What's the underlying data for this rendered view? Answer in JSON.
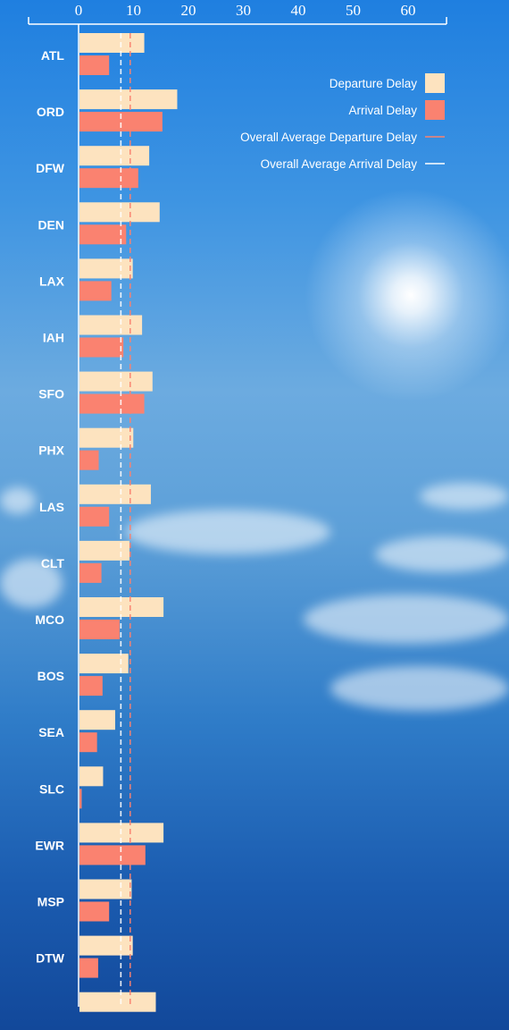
{
  "chart_data": {
    "type": "bar",
    "orientation": "horizontal",
    "categories": [
      "ATL",
      "ORD",
      "DFW",
      "DEN",
      "LAX",
      "IAH",
      "SFO",
      "PHX",
      "LAS",
      "CLT",
      "MCO",
      "BOS",
      "SEA",
      "SLC",
      "EWR",
      "MSP",
      "DTW",
      ""
    ],
    "series": [
      {
        "name": "Departure Delay",
        "color": "#fde3bf",
        "values": [
          11.8,
          17.8,
          12.7,
          14.6,
          9.7,
          11.4,
          13.3,
          9.8,
          13.0,
          9.1,
          15.3,
          8.9,
          6.5,
          4.3,
          15.3,
          9.5,
          9.7,
          13.9
        ]
      },
      {
        "name": "Arrival Delay",
        "color": "#fa8270",
        "values": [
          5.4,
          15.1,
          10.7,
          8.5,
          5.8,
          8.0,
          11.8,
          3.5,
          5.4,
          4.0,
          7.3,
          4.2,
          3.2,
          0.4,
          12.0,
          5.4,
          3.4,
          null
        ]
      }
    ],
    "reference_lines": [
      {
        "name": "Overall Average Departure Delay",
        "value": 9.4,
        "color": "#fa8270"
      },
      {
        "name": "Overall Average Arrival Delay",
        "value": 7.7,
        "color": "#ffffff"
      }
    ],
    "xlim": [
      0,
      67
    ],
    "xticks": [
      0,
      10,
      20,
      30,
      40,
      50,
      60
    ],
    "xaxis_position": "top",
    "legend_position": "top-right",
    "grid": false
  }
}
